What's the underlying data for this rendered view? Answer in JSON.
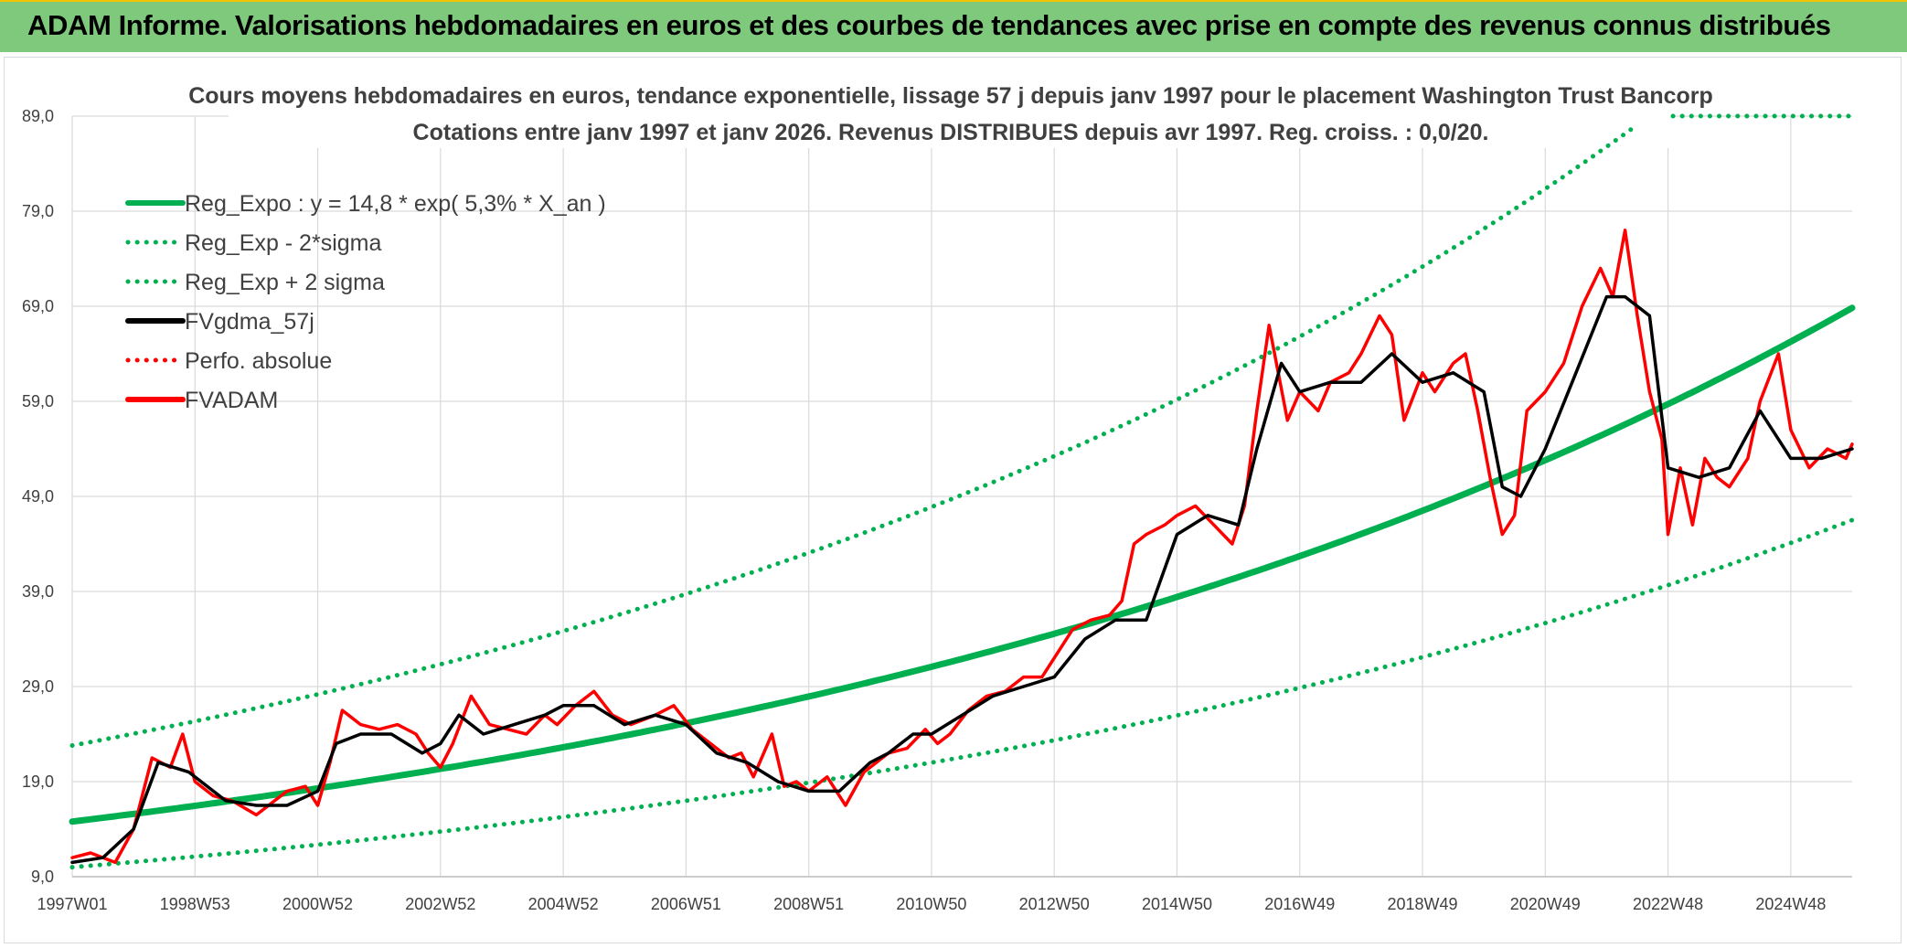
{
  "header": {
    "title": "ADAM Informe. Valorisations hebdomadaires en euros et des courbes de tendances avec prise en compte des revenus connus distribués"
  },
  "colors": {
    "green": "#00b050",
    "black": "#000000",
    "red": "#ff0000",
    "header_bg": "#7fc97c",
    "grid": "#d9d9d9",
    "text": "#404040"
  },
  "chart_data": {
    "type": "line",
    "title": "Cours moyens hebdomadaires en euros, tendance exponentielle, lissage 57 j depuis janv 1997 pour le placement Washington Trust Bancorp",
    "subtitle": "Cotations entre janv 1997 et janv 2026. Revenus DISTRIBUES depuis avr 1997. Reg. croiss. : 0,0/20.",
    "xlabel": "",
    "ylabel": "",
    "xlim": [
      1997.0,
      2026.0
    ],
    "ylim": [
      9.0,
      89.0
    ],
    "y_ticks": [
      9,
      19,
      29,
      39,
      49,
      59,
      69,
      79,
      89
    ],
    "y_tick_labels": [
      "9,0",
      "19,0",
      "29,0",
      "39,0",
      "49,0",
      "59,0",
      "69,0",
      "79,0",
      "89,0"
    ],
    "x_ticks": [
      1997.0,
      1999.0,
      2001.0,
      2003.0,
      2005.0,
      2007.0,
      2009.0,
      2011.0,
      2013.0,
      2015.0,
      2017.0,
      2019.0,
      2021.0,
      2023.0,
      2025.0
    ],
    "x_tick_labels": [
      "1997W01",
      "1998W53",
      "2000W52",
      "2002W52",
      "2004W52",
      "2006W51",
      "2008W51",
      "2010W50",
      "2012W50",
      "2014W50",
      "2016W49",
      "2018W49",
      "2020W49",
      "2022W48",
      "2024W48"
    ],
    "legend": [
      {
        "label": "Reg_Expo : y = 14,8 * exp( 5,3% *  X_an )",
        "color": "#00b050",
        "style": "solid"
      },
      {
        "label": "Reg_Exp - 2*sigma",
        "color": "#00b050",
        "style": "dotted"
      },
      {
        "label": "Reg_Exp + 2 sigma",
        "color": "#00b050",
        "style": "dotted"
      },
      {
        "label": "FVgdma_57j",
        "color": "#000000",
        "style": "solid"
      },
      {
        "label": "Perfo. absolue",
        "color": "#ff0000",
        "style": "dotted"
      },
      {
        "label": "FVADAM",
        "color": "#ff0000",
        "style": "solid"
      }
    ],
    "legend_position": "top-left",
    "series": [
      {
        "name": "Reg_Expo",
        "type": "exponential",
        "a": 14.8,
        "rate": 0.053,
        "x0": 1997.0
      },
      {
        "name": "Reg_Exp - 2*sigma",
        "type": "exponential",
        "a": 10.0,
        "rate": 0.053,
        "x0": 1997.0
      },
      {
        "name": "Reg_Exp + 2 sigma",
        "type": "exponential",
        "a": 22.8,
        "rate": 0.053,
        "x0": 1997.0
      },
      {
        "name": "FVgdma_57j",
        "x": [
          1997.0,
          1997.5,
          1998.0,
          1998.4,
          1998.9,
          1999.5,
          2000.0,
          2000.5,
          2001.0,
          2001.3,
          2001.7,
          2002.2,
          2002.7,
          2003.0,
          2003.3,
          2003.7,
          2004.2,
          2004.7,
          2005.0,
          2005.5,
          2006.0,
          2006.5,
          2007.0,
          2007.5,
          2008.0,
          2008.5,
          2009.0,
          2009.5,
          2010.0,
          2010.3,
          2010.7,
          2011.0,
          2011.5,
          2012.0,
          2012.5,
          2013.0,
          2013.5,
          2014.0,
          2014.5,
          2015.0,
          2015.5,
          2016.0,
          2016.3,
          2016.7,
          2017.0,
          2017.5,
          2018.0,
          2018.5,
          2019.0,
          2019.5,
          2020.0,
          2020.3,
          2020.6,
          2021.0,
          2021.5,
          2022.0,
          2022.3,
          2022.7,
          2023.0,
          2023.5,
          2024.0,
          2024.5,
          2025.0,
          2025.5,
          2026.0
        ],
        "y": [
          10.5,
          11,
          14,
          21,
          20,
          17,
          16.5,
          16.5,
          18,
          23,
          24,
          24,
          22,
          23,
          26,
          24,
          25,
          26,
          27,
          27,
          25,
          26,
          25,
          22,
          21,
          19,
          18,
          18,
          21,
          22,
          24,
          24,
          26,
          28,
          29,
          30,
          34,
          36,
          36,
          45,
          47,
          46,
          54,
          63,
          60,
          61,
          61,
          64,
          61,
          62,
          60,
          50,
          49,
          54,
          62,
          70,
          70,
          68,
          52,
          51,
          52,
          58,
          53,
          53,
          54
        ]
      },
      {
        "name": "FVADAM",
        "x": [
          1997.0,
          1997.3,
          1997.7,
          1998.0,
          1998.3,
          1998.6,
          1998.8,
          1999.0,
          1999.3,
          1999.6,
          2000.0,
          2000.3,
          2000.5,
          2000.8,
          2001.0,
          2001.2,
          2001.4,
          2001.7,
          2002.0,
          2002.3,
          2002.6,
          2002.8,
          2003.0,
          2003.2,
          2003.5,
          2003.8,
          2004.1,
          2004.4,
          2004.7,
          2004.9,
          2005.2,
          2005.5,
          2005.8,
          2006.1,
          2006.5,
          2006.8,
          2007.1,
          2007.4,
          2007.7,
          2007.9,
          2008.1,
          2008.4,
          2008.6,
          2008.8,
          2009.0,
          2009.3,
          2009.6,
          2009.9,
          2010.0,
          2010.3,
          2010.6,
          2010.9,
          2011.1,
          2011.3,
          2011.6,
          2011.9,
          2012.2,
          2012.5,
          2012.8,
          2013.0,
          2013.3,
          2013.6,
          2013.9,
          2014.1,
          2014.3,
          2014.5,
          2014.8,
          2015.0,
          2015.3,
          2015.6,
          2015.9,
          2016.1,
          2016.3,
          2016.5,
          2016.8,
          2017.0,
          2017.3,
          2017.5,
          2017.8,
          2018.0,
          2018.3,
          2018.5,
          2018.7,
          2019.0,
          2019.2,
          2019.5,
          2019.7,
          2019.9,
          2020.1,
          2020.3,
          2020.5,
          2020.7,
          2021.0,
          2021.3,
          2021.6,
          2021.9,
          2022.1,
          2022.3,
          2022.5,
          2022.7,
          2022.9,
          2023.0,
          2023.2,
          2023.4,
          2023.6,
          2023.8,
          2024.0,
          2024.3,
          2024.5,
          2024.8,
          2025.0,
          2025.3,
          2025.6,
          2025.9,
          2026.0
        ],
        "y": [
          11,
          11.5,
          10.5,
          14,
          21.5,
          20.5,
          24,
          19,
          17.5,
          17,
          15.5,
          17,
          18,
          18.5,
          16.5,
          21,
          26.5,
          25,
          24.5,
          25,
          24,
          22,
          20.5,
          23,
          28,
          25,
          24.5,
          24,
          26,
          25,
          27,
          28.5,
          26,
          25,
          26,
          27,
          24.5,
          23,
          21.5,
          22,
          19.5,
          24,
          18.5,
          19,
          18,
          19.5,
          16.5,
          20,
          20.5,
          22,
          22.5,
          24.5,
          23,
          24,
          26.5,
          28,
          28.5,
          30,
          30,
          32,
          35,
          36,
          36.5,
          38,
          44,
          45,
          46,
          47,
          48,
          46,
          44,
          48,
          58,
          67,
          57,
          60,
          58,
          61,
          62,
          64,
          68,
          66,
          57,
          62,
          60,
          63,
          64,
          58,
          51,
          45,
          47,
          58,
          60,
          63,
          69,
          73,
          70,
          77,
          68,
          60,
          55,
          45,
          52,
          46,
          53,
          51,
          50,
          53,
          59,
          64,
          56,
          52,
          54,
          53,
          54.5
        ]
      }
    ]
  }
}
